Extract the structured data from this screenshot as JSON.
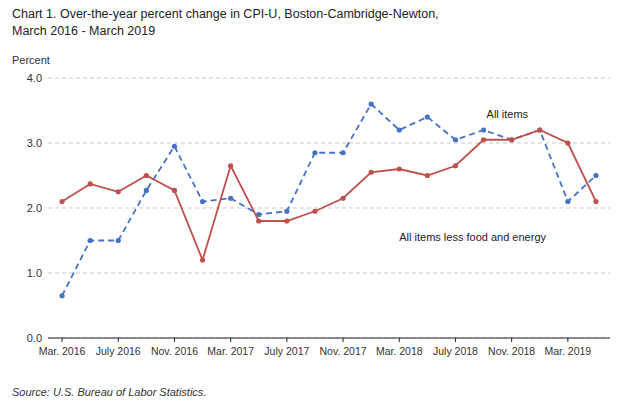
{
  "chart_data": {
    "type": "line",
    "title": "Chart 1.  Over-the-year percent change in CPI-U, Boston-Cambridge-Newton,",
    "subtitle": "March 2016 - March 2019",
    "y_label": "Percent",
    "source": "Source: U.S. Bureau of Labor Statistics.",
    "categories": [
      "Mar. 2016",
      null,
      "July 2016",
      null,
      "Nov. 2016",
      null,
      "Mar. 2017",
      null,
      "July 2017",
      null,
      "Nov. 2017",
      null,
      "Mar. 2018",
      null,
      "July 2018",
      null,
      "Nov. 2018",
      null,
      "Mar. 2019",
      null
    ],
    "series": [
      {
        "name": "All items",
        "color": "#4472C4",
        "marker": "circle",
        "line_style": "dashed",
        "values": [
          0.65,
          1.5,
          1.5,
          2.27,
          2.95,
          2.1,
          2.15,
          1.9,
          1.95,
          2.85,
          2.85,
          3.6,
          3.2,
          3.4,
          3.05,
          3.2,
          3.05,
          3.2,
          2.1,
          2.5
        ]
      },
      {
        "name": "All items less food and energy",
        "color": "#C0504D",
        "marker": "circle",
        "line_style": "solid",
        "values": [
          2.1,
          2.37,
          2.25,
          2.5,
          2.27,
          1.2,
          2.65,
          1.8,
          1.8,
          1.95,
          2.15,
          2.55,
          2.6,
          2.5,
          2.65,
          3.05,
          3.05,
          3.2,
          3.0,
          2.1
        ]
      }
    ],
    "ylim": [
      0.0,
      4.0
    ],
    "yticks": [
      {
        "value": 0.0,
        "label": "0.0"
      },
      {
        "value": 1.0,
        "label": "1.0"
      },
      {
        "value": 2.0,
        "label": "2.0"
      },
      {
        "value": 3.0,
        "label": "3.0"
      },
      {
        "value": 4.0,
        "label": "4.0"
      }
    ],
    "grid": true
  }
}
